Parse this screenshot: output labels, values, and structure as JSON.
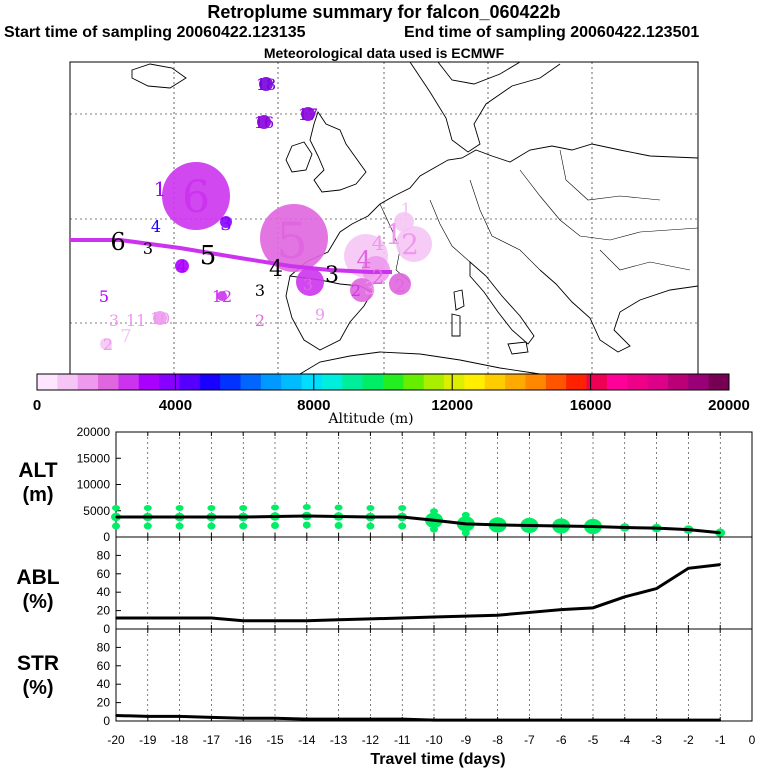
{
  "header": {
    "title": "Retroplume summary for falcon_060422b",
    "start_label": "Start time of sampling 20060422.123135",
    "end_label": "End time of sampling 20060422.123501",
    "met_label": "Meteorological data used is ECMWF"
  },
  "colorbar": {
    "ticks": [
      "0",
      "4000",
      "8000",
      "12000",
      "16000",
      "20000"
    ],
    "label": "Altitude (m)",
    "colors": [
      "#ffe6ff",
      "#f5c6f5",
      "#ee99ee",
      "#e066e0",
      "#cc33ee",
      "#aa00ff",
      "#8800ff",
      "#5500ff",
      "#1a00ff",
      "#0033ff",
      "#0066ff",
      "#0099ff",
      "#00bbff",
      "#00ddff",
      "#00eedd",
      "#00ee99",
      "#00ee66",
      "#22ee22",
      "#66ee00",
      "#aaee00",
      "#ddee00",
      "#ffee00",
      "#ffcc00",
      "#ffaa00",
      "#ff8800",
      "#ff5500",
      "#ff2200",
      "#ee0055",
      "#ff0099",
      "#ee0088",
      "#dd0088",
      "#bb0077",
      "#990077",
      "#770055"
    ]
  },
  "map": {
    "labels": [
      {
        "t": "18",
        "c": "#7700dd"
      },
      {
        "t": "16",
        "c": "#8800dd"
      },
      {
        "t": "17",
        "c": "#8800dd"
      },
      {
        "t": "6",
        "c": "#cc33ee"
      },
      {
        "t": "1",
        "c": "#aa00ff"
      },
      {
        "t": "3",
        "c": "#8800ff"
      },
      {
        "t": "4",
        "c": "#1a00ff"
      },
      {
        "t": "6",
        "c": "#000000"
      },
      {
        "t": "3",
        "c": "#000000"
      },
      {
        "t": "5",
        "c": "#000000"
      },
      {
        "t": "4",
        "c": "#aa00ff"
      },
      {
        "t": "5",
        "c": "#e066e0"
      },
      {
        "t": "4",
        "c": "#000000"
      },
      {
        "t": "3",
        "c": "#000000"
      },
      {
        "t": "4",
        "c": "#e066e0"
      },
      {
        "t": "1",
        "c": "#f5c6f5"
      },
      {
        "t": "1",
        "c": "#ee99ee"
      },
      {
        "t": "2",
        "c": "#ee99ee"
      },
      {
        "t": "4",
        "c": "#ee99ee"
      },
      {
        "t": "3",
        "c": "#ee99ee"
      },
      {
        "t": "2",
        "c": "#e066e0"
      },
      {
        "t": "5",
        "c": "#aa00ff"
      },
      {
        "t": "12",
        "c": "#cc33ee"
      },
      {
        "t": "3",
        "c": "#000000"
      },
      {
        "t": "2",
        "c": "#e066e0"
      },
      {
        "t": "3",
        "c": "#e066e0"
      },
      {
        "t": "2",
        "c": "#e066e0"
      },
      {
        "t": "9",
        "c": "#ee99ee"
      },
      {
        "t": "3",
        "c": "#ee99ee"
      },
      {
        "t": "11",
        "c": "#ee99ee"
      },
      {
        "t": "10",
        "c": "#ee99ee"
      },
      {
        "t": "7",
        "c": "#f5c6f5"
      },
      {
        "t": "2",
        "c": "#ee99ee"
      },
      {
        "t": "2",
        "c": "#cc33ee"
      }
    ]
  },
  "panels": {
    "alt": {
      "label1": "ALT",
      "label2": "(m)",
      "ticks": [
        "20000",
        "15000",
        "10000",
        "5000",
        "0"
      ]
    },
    "abl": {
      "label1": "ABL",
      "label2": "(%)",
      "ticks": [
        "80",
        "60",
        "40",
        "20",
        "0"
      ]
    },
    "str": {
      "label1": "STR",
      "label2": "(%)",
      "ticks": [
        "80",
        "60",
        "40",
        "20",
        "0"
      ]
    },
    "xticks": [
      "-20",
      "-19",
      "-18",
      "-17",
      "-16",
      "-15",
      "-14",
      "-13",
      "-12",
      "-11",
      "-10",
      "-9",
      "-8",
      "-7",
      "-6",
      "-5",
      "-4",
      "-3",
      "-2",
      "-1",
      "0"
    ],
    "xlabel": "Travel time (days)"
  },
  "chart_data": [
    {
      "type": "line",
      "name": "ALT",
      "title": "ALT (m)",
      "x": [
        -20,
        -19,
        -18,
        -17,
        -16,
        -15,
        -14,
        -13,
        -12,
        -11,
        -10,
        -9,
        -8,
        -7,
        -6,
        -5,
        -4,
        -3,
        -2,
        -1
      ],
      "y": [
        3800,
        3800,
        3800,
        3800,
        3800,
        3900,
        4000,
        3900,
        3800,
        3800,
        3200,
        2500,
        2300,
        2200,
        2100,
        2000,
        1800,
        1700,
        1400,
        800
      ],
      "ylim": [
        0,
        20000
      ],
      "xlim": [
        -20,
        0
      ],
      "xlabel": "Travel time (days)",
      "ylabel": "ALT (m)",
      "color": "#000000",
      "spread_color": "#00ee66"
    },
    {
      "type": "line",
      "name": "ABL",
      "title": "ABL (%)",
      "x": [
        -20,
        -19,
        -18,
        -17,
        -16,
        -15,
        -14,
        -13,
        -12,
        -11,
        -10,
        -9,
        -8,
        -7,
        -6,
        -5,
        -4,
        -3,
        -2,
        -1
      ],
      "y": [
        12,
        12,
        12,
        12,
        9,
        9,
        9,
        10,
        11,
        12,
        13,
        14,
        15,
        18,
        21,
        23,
        35,
        44,
        66,
        70
      ],
      "ylim": [
        0,
        100
      ],
      "xlim": [
        -20,
        0
      ],
      "xlabel": "Travel time (days)",
      "ylabel": "ABL (%)",
      "color": "#000000"
    },
    {
      "type": "line",
      "name": "STR",
      "title": "STR (%)",
      "x": [
        -20,
        -19,
        -18,
        -17,
        -16,
        -15,
        -14,
        -13,
        -12,
        -11,
        -10,
        -9,
        -8,
        -7,
        -6,
        -5,
        -4,
        -3,
        -2,
        -1
      ],
      "y": [
        6,
        5,
        5,
        4,
        3,
        3,
        2,
        2,
        2,
        2,
        1,
        1,
        1,
        1,
        1,
        1,
        1,
        1,
        1,
        1
      ],
      "ylim": [
        0,
        100
      ],
      "xlim": [
        -20,
        0
      ],
      "xlabel": "Travel time (days)",
      "ylabel": "STR (%)",
      "color": "#000000"
    }
  ]
}
